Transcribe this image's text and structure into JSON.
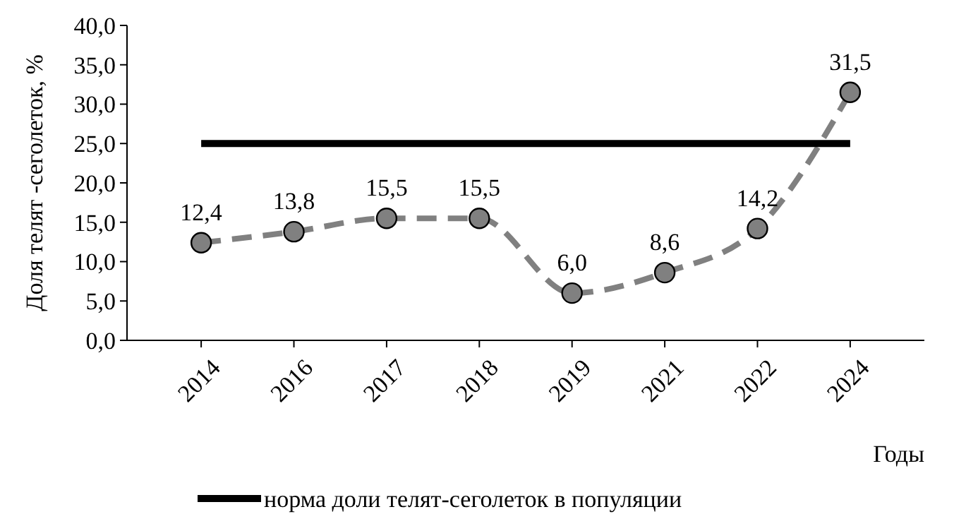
{
  "chart_data": {
    "type": "line",
    "xlabel": "Годы",
    "ylabel": "Доля телят -сеголеток, %",
    "categories": [
      "2014",
      "2016",
      "2017",
      "2018",
      "2019",
      "2021",
      "2022",
      "2024"
    ],
    "series": [
      {
        "color": "#808080",
        "values": [
          12.4,
          13.8,
          15.5,
          15.5,
          6.0,
          8.6,
          14.2,
          31.5
        ],
        "value_labels": [
          "12,4",
          "13,8",
          "15,5",
          "15,5",
          "6,0",
          "8,6",
          "14,2",
          "31,5"
        ],
        "line_style": "dashed",
        "marker": "circle"
      },
      {
        "name": "норма доли телят-сеголеток в популяции",
        "color": "#000000",
        "values": [
          25,
          25,
          25,
          25,
          25,
          25,
          25,
          25
        ],
        "line_style": "solid",
        "marker": "none"
      }
    ],
    "ylim": [
      0,
      40
    ],
    "yticks": [
      {
        "value": 0,
        "label": "0,0"
      },
      {
        "value": 5,
        "label": "5,0"
      },
      {
        "value": 10,
        "label": "10,0"
      },
      {
        "value": 15,
        "label": "15,0"
      },
      {
        "value": 20,
        "label": "20,0"
      },
      {
        "value": 25,
        "label": "25,0"
      },
      {
        "value": 30,
        "label": "30,0"
      },
      {
        "value": 35,
        "label": "35,0"
      },
      {
        "value": 40,
        "label": "40,0"
      }
    ],
    "grid": false,
    "legend": "bottom"
  }
}
